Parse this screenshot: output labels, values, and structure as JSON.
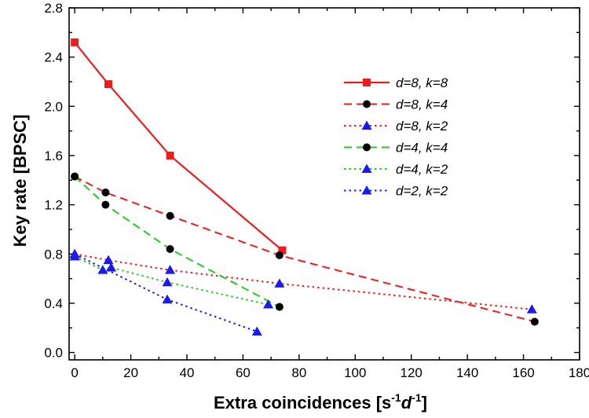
{
  "chart_data": {
    "type": "line",
    "xlabel": "Extra coincidences [s",
    "xlabel_sup1": "-1",
    "xlabel_mid": "d",
    "xlabel_sup2": "-1",
    "xlabel_end": "]",
    "ylabel": "Key rate [BPSC]",
    "xlim": [
      -2,
      180
    ],
    "ylim": [
      -0.06,
      2.8
    ],
    "x_ticks": [
      0,
      20,
      40,
      60,
      80,
      100,
      120,
      140,
      160,
      180
    ],
    "y_ticks": [
      0.0,
      0.4,
      0.8,
      1.2,
      1.6,
      2.0,
      2.4,
      2.8
    ],
    "x_tick_labels": [
      "0",
      "20",
      "40",
      "60",
      "80",
      "100",
      "120",
      "140",
      "160",
      "180"
    ],
    "y_tick_labels": [
      "0.0",
      "0.4",
      "0.8",
      "1.2",
      "1.6",
      "2.0",
      "2.4",
      "2.8"
    ],
    "legend_position": "top-right",
    "series": [
      {
        "name": "d=8, k=8",
        "color": "#ee1c1c",
        "dash": "solid",
        "marker": "square",
        "marker_color": "#ee1c1c",
        "points": [
          [
            0,
            2.52
          ],
          [
            12,
            2.18
          ],
          [
            34,
            1.6
          ],
          [
            74,
            0.83
          ]
        ]
      },
      {
        "name": "d=8, k=4",
        "color": "#ee1c1c",
        "dash": "dashed",
        "marker": "circle",
        "marker_color": "#000000",
        "points": [
          [
            0,
            1.43
          ],
          [
            11,
            1.3
          ],
          [
            34,
            1.11
          ],
          [
            73,
            0.79
          ],
          [
            164,
            0.25
          ]
        ]
      },
      {
        "name": "d=8, k=2",
        "color": "#ee1c1c",
        "dash": "dotted",
        "marker": "triangle",
        "marker_color": "#1a1aee",
        "points": [
          [
            0,
            0.8
          ],
          [
            12,
            0.75
          ],
          [
            34,
            0.67
          ],
          [
            73,
            0.56
          ],
          [
            163,
            0.35
          ]
        ]
      },
      {
        "name": "d=4, k=4",
        "color": "#22cc22",
        "dash": "dashed",
        "marker": "circle",
        "marker_color": "#000000",
        "points": [
          [
            0,
            1.43
          ],
          [
            11,
            1.2
          ],
          [
            34,
            0.84
          ],
          [
            73,
            0.37
          ]
        ]
      },
      {
        "name": "d=4, k=2",
        "color": "#22cc22",
        "dash": "dotted",
        "marker": "triangle",
        "marker_color": "#1a1aee",
        "points": [
          [
            0,
            0.78
          ],
          [
            10,
            0.67
          ],
          [
            13,
            0.69
          ],
          [
            33,
            0.57
          ],
          [
            69,
            0.39
          ]
        ]
      },
      {
        "name": "d=2, k=2",
        "color": "#1a1aee",
        "dash": "dotted",
        "marker": "triangle",
        "marker_color": "#1a1aee",
        "points": [
          [
            0,
            0.8
          ],
          [
            33,
            0.43
          ],
          [
            65,
            0.17
          ]
        ]
      }
    ]
  }
}
